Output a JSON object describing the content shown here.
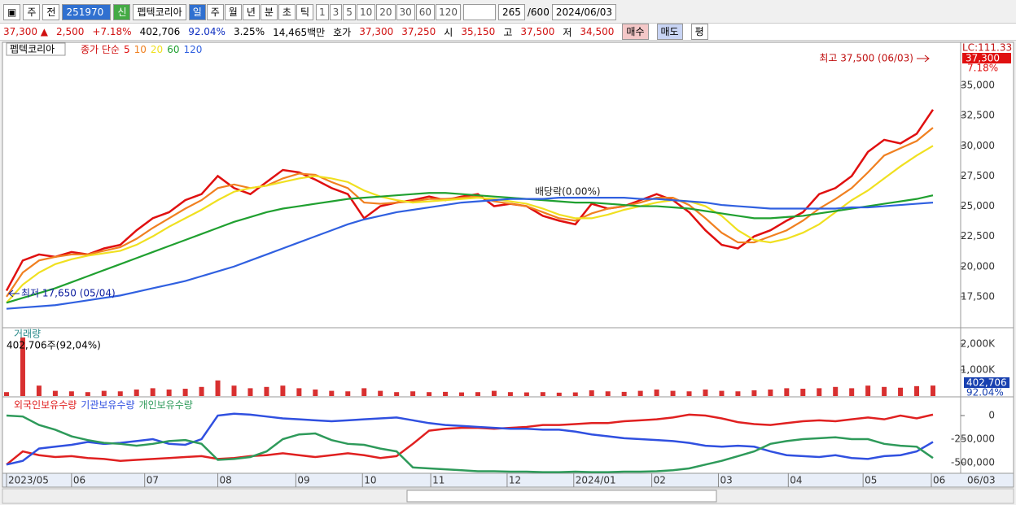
{
  "toolbar": {
    "period_type": "주",
    "adjust": "전",
    "code": "251970",
    "badge": "신",
    "name": "펩텍코리아",
    "periods": [
      "일",
      "주",
      "월",
      "년",
      "분",
      "초",
      "틱"
    ],
    "intervals": [
      "1",
      "3",
      "5",
      "10",
      "20",
      "30",
      "60",
      "120"
    ],
    "count": "265",
    "max": "/600",
    "date": "2024/06/03"
  },
  "quote": {
    "price": "37,300 ▲",
    "change": "2,500",
    "rate": "+7.18%",
    "volume": "402,706",
    "volume_rate": "92.04%",
    "turnover": "3.25%",
    "amount": "14,465백만",
    "ask_label": "호가",
    "ask": "37,300",
    "bid": "37,250",
    "open_label": "시",
    "open": "35,150",
    "high_label": "고",
    "high": "37,500",
    "low_label": "저",
    "low": "34,500",
    "buy": "매수",
    "sell": "매도",
    "avg": "평"
  },
  "chart_data": [
    {
      "type": "line",
      "title": "펩텍코리아",
      "legend_prefix": "종가 단순",
      "xlim": [
        0,
        57
      ],
      "ylim": [
        14930,
        38580
      ],
      "yticks": [
        {
          "value": 17500,
          "label": "17,500"
        },
        {
          "value": 20000,
          "label": "20,000"
        },
        {
          "value": 22500,
          "label": "22,500"
        },
        {
          "value": 25000,
          "label": "25,000"
        },
        {
          "value": 27500,
          "label": "27,500"
        },
        {
          "value": 30000,
          "label": "30,000"
        },
        {
          "value": 32500,
          "label": "32,500"
        },
        {
          "value": 35000,
          "label": "35,000"
        }
      ],
      "series": [
        {
          "name": "5",
          "color": "#e01010",
          "values": [
            18000,
            20500,
            21000,
            20800,
            21200,
            21000,
            21500,
            21800,
            23000,
            24000,
            24500,
            25500,
            26000,
            27500,
            26500,
            26000,
            27000,
            28000,
            27800,
            27200,
            26500,
            26000,
            24000,
            25000,
            25300,
            25500,
            25800,
            25500,
            25800,
            26000,
            25000,
            25200,
            25000,
            24200,
            23800,
            23500,
            25200,
            24800,
            25000,
            25500,
            26000,
            25500,
            24500,
            23000,
            21800,
            21500,
            22500,
            23000,
            23800,
            24500,
            26000,
            26500,
            27500,
            29500,
            30500,
            30200,
            31000,
            33000
          ]
        },
        {
          "name": "10",
          "color": "#f08020",
          "values": [
            17500,
            19500,
            20500,
            20800,
            21000,
            21000,
            21300,
            21600,
            22300,
            23200,
            24000,
            24800,
            25500,
            26500,
            26800,
            26500,
            26700,
            27300,
            27700,
            27600,
            27000,
            26500,
            25300,
            25200,
            25300,
            25400,
            25600,
            25600,
            25700,
            25800,
            25400,
            25200,
            25000,
            24500,
            24000,
            23800,
            24400,
            24800,
            25000,
            25300,
            25700,
            25700,
            25100,
            24000,
            22800,
            22000,
            22000,
            22500,
            23000,
            23800,
            24800,
            25600,
            26500,
            27800,
            29200,
            29800,
            30400,
            31500
          ]
        },
        {
          "name": "20",
          "color": "#f0e020",
          "values": [
            17000,
            18500,
            19500,
            20200,
            20600,
            20900,
            21100,
            21300,
            21800,
            22500,
            23300,
            24000,
            24700,
            25500,
            26200,
            26500,
            26700,
            27000,
            27300,
            27500,
            27300,
            27000,
            26300,
            25800,
            25500,
            25300,
            25400,
            25500,
            25600,
            25700,
            25600,
            25400,
            25200,
            24800,
            24300,
            24000,
            24000,
            24300,
            24700,
            25000,
            25300,
            25500,
            25400,
            25000,
            24200,
            23000,
            22200,
            22000,
            22300,
            22800,
            23500,
            24500,
            25500,
            26300,
            27300,
            28300,
            29200,
            30000
          ]
        },
        {
          "name": "60",
          "color": "#20a030",
          "values": [
            17000,
            17400,
            17800,
            18200,
            18700,
            19200,
            19700,
            20200,
            20700,
            21200,
            21700,
            22200,
            22700,
            23200,
            23700,
            24100,
            24500,
            24800,
            25000,
            25200,
            25400,
            25600,
            25700,
            25800,
            25900,
            26000,
            26100,
            26100,
            26000,
            25900,
            25800,
            25700,
            25600,
            25500,
            25400,
            25300,
            25300,
            25200,
            25100,
            25000,
            25000,
            24900,
            24800,
            24600,
            24400,
            24200,
            24000,
            24000,
            24100,
            24200,
            24400,
            24600,
            24800,
            25000,
            25200,
            25400,
            25600,
            25900
          ]
        },
        {
          "name": "120",
          "color": "#3060e0",
          "values": [
            16500,
            16600,
            16700,
            16800,
            17000,
            17200,
            17400,
            17600,
            17900,
            18200,
            18500,
            18800,
            19200,
            19600,
            20000,
            20500,
            21000,
            21500,
            22000,
            22500,
            23000,
            23500,
            23900,
            24200,
            24500,
            24700,
            24900,
            25100,
            25300,
            25400,
            25500,
            25600,
            25600,
            25600,
            25700,
            25700,
            25700,
            25700,
            25700,
            25600,
            25600,
            25500,
            25400,
            25300,
            25100,
            25000,
            24900,
            24800,
            24800,
            24800,
            24800,
            24800,
            24900,
            24900,
            25000,
            25100,
            25200,
            25300
          ]
        }
      ],
      "annotations": [
        "최고 37,500 (06/03)",
        "최저 17,650 (05/04)",
        "배당락(0.00%)"
      ],
      "scale_label": "LC:111.33",
      "last_label": "37,300",
      "last_rate": "7.18%"
    },
    {
      "type": "bar",
      "title": "거래량",
      "subtitle": "402,706주(92,04%)",
      "xlim": [
        0,
        57
      ],
      "ylim": [
        0,
        2594000
      ],
      "yticks": [
        {
          "value": 1000000,
          "label": "1,000K"
        },
        {
          "value": 2000000,
          "label": "2,000K"
        }
      ],
      "color": "#d83030",
      "values": [
        150000,
        2250000,
        400000,
        200000,
        180000,
        150000,
        200000,
        180000,
        250000,
        300000,
        250000,
        280000,
        350000,
        600000,
        400000,
        300000,
        350000,
        400000,
        300000,
        250000,
        200000,
        180000,
        300000,
        200000,
        150000,
        180000,
        150000,
        160000,
        140000,
        150000,
        200000,
        150000,
        140000,
        150000,
        130000,
        140000,
        220000,
        180000,
        160000,
        200000,
        250000,
        200000,
        180000,
        250000,
        200000,
        180000,
        220000,
        250000,
        300000,
        280000,
        300000,
        350000,
        300000,
        400000,
        350000,
        320000,
        380000,
        402706
      ],
      "last_label": "402,706",
      "last_rate": "92.04%"
    },
    {
      "type": "line",
      "xlim": [
        0,
        57
      ],
      "ylim": [
        -612000,
        164000
      ],
      "yticks": [
        0,
        {
          "value": -250000,
          "label": "-250,000"
        },
        {
          "value": -500000,
          "label": "-500,000"
        }
      ],
      "xticks": [
        {
          "value": 0,
          "label": "2023/05"
        },
        {
          "value": 4.0,
          "label": "06"
        },
        {
          "value": 8.5,
          "label": "07"
        },
        {
          "value": 13.0,
          "label": "08"
        },
        {
          "value": 17.8,
          "label": "09"
        },
        {
          "value": 21.9,
          "label": "10"
        },
        {
          "value": 26.1,
          "label": "11"
        },
        {
          "value": 30.8,
          "label": "12"
        },
        {
          "value": 34.9,
          "label": "2024/01"
        },
        {
          "value": 39.7,
          "label": "02"
        },
        {
          "value": 43.8,
          "label": "03"
        },
        {
          "value": 48.1,
          "label": "04"
        },
        {
          "value": 52.7,
          "label": "05"
        },
        {
          "value": 56.9,
          "label": "06"
        }
      ],
      "last_date": "06/03",
      "series": [
        {
          "name": "외국인보유수량",
          "color": "#e02020",
          "values": [
            -520000,
            -380000,
            -420000,
            -440000,
            -430000,
            -450000,
            -460000,
            -480000,
            -470000,
            -460000,
            -450000,
            -440000,
            -430000,
            -460000,
            -450000,
            -430000,
            -420000,
            -400000,
            -420000,
            -440000,
            -420000,
            -400000,
            -420000,
            -450000,
            -430000,
            -300000,
            -160000,
            -140000,
            -130000,
            -130000,
            -140000,
            -130000,
            -120000,
            -100000,
            -100000,
            -90000,
            -80000,
            -80000,
            -60000,
            -50000,
            -40000,
            -20000,
            10000,
            0,
            -30000,
            -70000,
            -90000,
            -100000,
            -80000,
            -60000,
            -50000,
            -60000,
            -40000,
            -20000,
            -40000,
            0,
            -30000,
            10000
          ]
        },
        {
          "name": "기관보유수량",
          "color": "#3050e0",
          "values": [
            -520000,
            -480000,
            -350000,
            -330000,
            -310000,
            -280000,
            -300000,
            -290000,
            -270000,
            -250000,
            -300000,
            -310000,
            -250000,
            0,
            20000,
            10000,
            -10000,
            -30000,
            -40000,
            -50000,
            -60000,
            -50000,
            -40000,
            -30000,
            -20000,
            -50000,
            -80000,
            -100000,
            -110000,
            -120000,
            -130000,
            -140000,
            -140000,
            -150000,
            -150000,
            -170000,
            -200000,
            -220000,
            -240000,
            -250000,
            -260000,
            -270000,
            -290000,
            -320000,
            -330000,
            -320000,
            -330000,
            -380000,
            -420000,
            -430000,
            -440000,
            -420000,
            -450000,
            -460000,
            -430000,
            -420000,
            -380000,
            -280000
          ]
        },
        {
          "name": "개인보유수량",
          "color": "#2e9a5a",
          "values": [
            0,
            -10000,
            -100000,
            -150000,
            -220000,
            -260000,
            -290000,
            -300000,
            -320000,
            -300000,
            -270000,
            -260000,
            -300000,
            -470000,
            -460000,
            -440000,
            -380000,
            -250000,
            -200000,
            -190000,
            -260000,
            -300000,
            -310000,
            -350000,
            -380000,
            -550000,
            -560000,
            -570000,
            -580000,
            -590000,
            -590000,
            -595000,
            -595000,
            -600000,
            -600000,
            -595000,
            -600000,
            -600000,
            -595000,
            -595000,
            -590000,
            -580000,
            -560000,
            -520000,
            -480000,
            -430000,
            -380000,
            -300000,
            -270000,
            -250000,
            -240000,
            -230000,
            -250000,
            -250000,
            -300000,
            -320000,
            -330000,
            -450000
          ]
        }
      ]
    }
  ]
}
